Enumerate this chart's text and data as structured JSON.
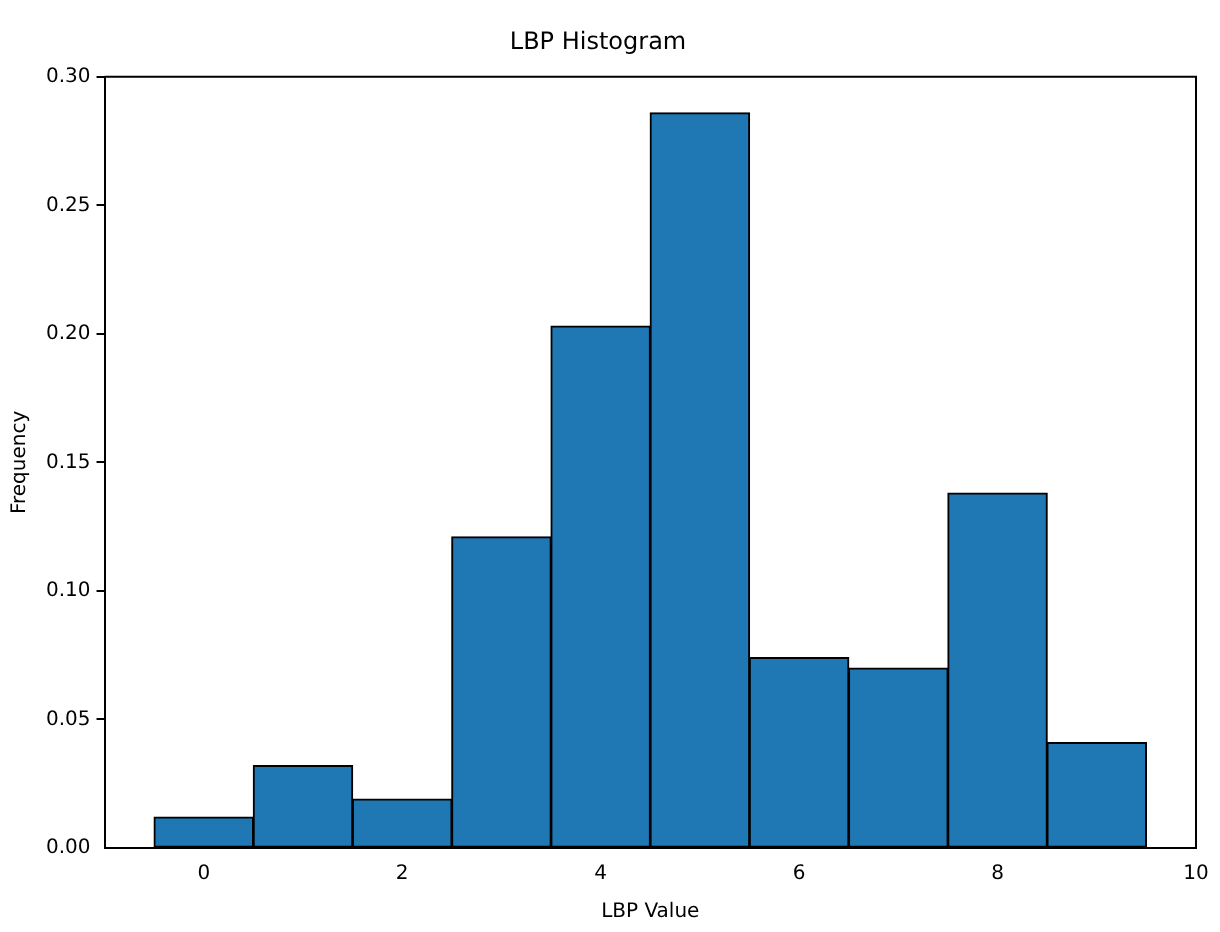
{
  "chart_data": {
    "type": "histogram",
    "title": "LBP Histogram",
    "xlabel": "LBP Value",
    "ylabel": "Frequency",
    "bins": [
      -0.5,
      0.5,
      1.5,
      2.5,
      3.5,
      4.5,
      5.5,
      6.5,
      7.5,
      8.5,
      9.5
    ],
    "values": [
      0.012,
      0.032,
      0.019,
      0.121,
      0.203,
      0.286,
      0.074,
      0.07,
      0.138,
      0.041
    ],
    "color": "#1f77b4",
    "xlim": [
      -1,
      10
    ],
    "xticks": [
      0,
      2,
      4,
      6,
      8,
      10
    ],
    "ylim": [
      0,
      0.3
    ],
    "yticks": [
      {
        "value": 0,
        "label": "0.00"
      },
      {
        "value": 0.05,
        "label": "0.05"
      },
      {
        "value": 0.1,
        "label": "0.10"
      },
      {
        "value": 0.15,
        "label": "0.15"
      },
      {
        "value": 0.2,
        "label": "0.20"
      },
      {
        "value": 0.25,
        "label": "0.25"
      },
      {
        "value": 0.3,
        "label": "0.30"
      }
    ],
    "grid": false
  }
}
